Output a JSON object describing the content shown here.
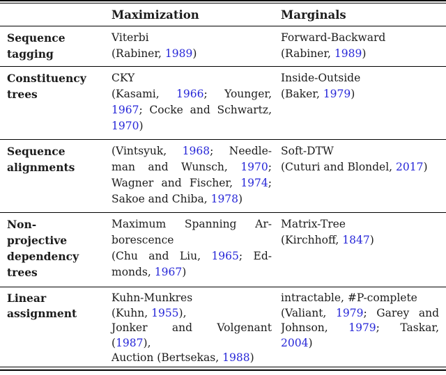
{
  "colors": {
    "citation": "#2626d8",
    "text": "#1c1c1c",
    "rule": "#000000",
    "background": "#ffffff"
  },
  "header": {
    "maximization": "Maximization",
    "marginals": "Marginals"
  },
  "rows": [
    {
      "label_lines": [
        "Sequence",
        "tagging"
      ],
      "maximization": [
        {
          "j": false,
          "seg": [
            {
              "t": "Viterbi"
            }
          ]
        },
        {
          "j": false,
          "seg": [
            {
              "t": "(Rabiner, "
            },
            {
              "t": "1989",
              "c": true
            },
            {
              "t": ")"
            }
          ]
        }
      ],
      "marginals": [
        {
          "j": false,
          "seg": [
            {
              "t": "Forward-Backward"
            }
          ]
        },
        {
          "j": false,
          "seg": [
            {
              "t": "(Rabiner, "
            },
            {
              "t": "1989",
              "c": true
            },
            {
              "t": ")"
            }
          ]
        }
      ]
    },
    {
      "label_lines": [
        "Constituency",
        "trees"
      ],
      "maximization": [
        {
          "j": false,
          "seg": [
            {
              "t": "CKY"
            }
          ]
        },
        {
          "j": true,
          "seg": [
            {
              "t": "(Kasami, "
            },
            {
              "t": "1966",
              "c": true
            },
            {
              "t": "; Younger,"
            }
          ]
        },
        {
          "j": true,
          "seg": [
            {
              "t": "1967",
              "c": true
            },
            {
              "t": "; Cocke and Schwartz,"
            }
          ]
        },
        {
          "j": false,
          "seg": [
            {
              "t": "1970",
              "c": true
            },
            {
              "t": ")"
            }
          ]
        }
      ],
      "marginals": [
        {
          "j": false,
          "seg": [
            {
              "t": "Inside-Outside"
            }
          ]
        },
        {
          "j": false,
          "seg": [
            {
              "t": "(Baker, "
            },
            {
              "t": "1979",
              "c": true
            },
            {
              "t": ")"
            }
          ]
        }
      ]
    },
    {
      "label_lines": [
        "Sequence",
        "alignments"
      ],
      "maximization": [
        {
          "j": true,
          "seg": [
            {
              "t": "(Vintsyuk, "
            },
            {
              "t": "1968",
              "c": true
            },
            {
              "t": "; Needle-"
            }
          ]
        },
        {
          "j": true,
          "seg": [
            {
              "t": "man and Wunsch, "
            },
            {
              "t": "1970",
              "c": true
            },
            {
              "t": ";"
            }
          ]
        },
        {
          "j": true,
          "seg": [
            {
              "t": "Wagner and Fischer, "
            },
            {
              "t": "1974",
              "c": true
            },
            {
              "t": ";"
            }
          ]
        },
        {
          "j": false,
          "seg": [
            {
              "t": "Sakoe and Chiba, "
            },
            {
              "t": "1978",
              "c": true
            },
            {
              "t": ")"
            }
          ]
        }
      ],
      "marginals": [
        {
          "j": false,
          "seg": [
            {
              "t": "Soft-DTW"
            }
          ]
        },
        {
          "j": false,
          "seg": [
            {
              "t": "(Cuturi and Blondel, "
            },
            {
              "t": "2017",
              "c": true
            },
            {
              "t": ")"
            }
          ]
        }
      ]
    },
    {
      "label_lines": [
        "Non-",
        "projective",
        "dependency",
        "trees"
      ],
      "maximization": [
        {
          "j": true,
          "seg": [
            {
              "t": "Maximum Spanning Ar-"
            }
          ]
        },
        {
          "j": false,
          "seg": [
            {
              "t": "borescence"
            }
          ]
        },
        {
          "j": true,
          "seg": [
            {
              "t": "(Chu and Liu, "
            },
            {
              "t": "1965",
              "c": true
            },
            {
              "t": "; Ed-"
            }
          ]
        },
        {
          "j": false,
          "seg": [
            {
              "t": "monds, "
            },
            {
              "t": "1967",
              "c": true
            },
            {
              "t": ")"
            }
          ]
        }
      ],
      "marginals": [
        {
          "j": false,
          "seg": [
            {
              "t": "Matrix-Tree"
            }
          ]
        },
        {
          "j": false,
          "seg": [
            {
              "t": "(Kirchhoff, "
            },
            {
              "t": "1847",
              "c": true
            },
            {
              "t": ")"
            }
          ]
        }
      ]
    },
    {
      "label_lines": [
        "Linear",
        "assignment"
      ],
      "maximization": [
        {
          "j": false,
          "seg": [
            {
              "t": "Kuhn-Munkres"
            }
          ]
        },
        {
          "j": false,
          "seg": [
            {
              "t": "(Kuhn, "
            },
            {
              "t": "1955",
              "c": true
            },
            {
              "t": "),"
            }
          ]
        },
        {
          "j": true,
          "seg": [
            {
              "t": "Jonker and Volgenant"
            }
          ]
        },
        {
          "j": false,
          "seg": [
            {
              "t": "("
            },
            {
              "t": "1987",
              "c": true
            },
            {
              "t": "),"
            }
          ]
        },
        {
          "j": false,
          "seg": [
            {
              "t": "Auction (Bertsekas, "
            },
            {
              "t": "1988",
              "c": true
            },
            {
              "t": ")"
            }
          ]
        }
      ],
      "marginals": [
        {
          "j": false,
          "seg": [
            {
              "t": "intractable, #P-complete"
            }
          ]
        },
        {
          "j": true,
          "seg": [
            {
              "t": "(Valiant, "
            },
            {
              "t": "1979",
              "c": true
            },
            {
              "t": "; Garey and"
            }
          ]
        },
        {
          "j": true,
          "seg": [
            {
              "t": "Johnson, "
            },
            {
              "t": "1979",
              "c": true
            },
            {
              "t": "; Taskar,"
            }
          ]
        },
        {
          "j": false,
          "seg": [
            {
              "t": "2004",
              "c": true
            },
            {
              "t": ")"
            }
          ]
        }
      ]
    }
  ]
}
